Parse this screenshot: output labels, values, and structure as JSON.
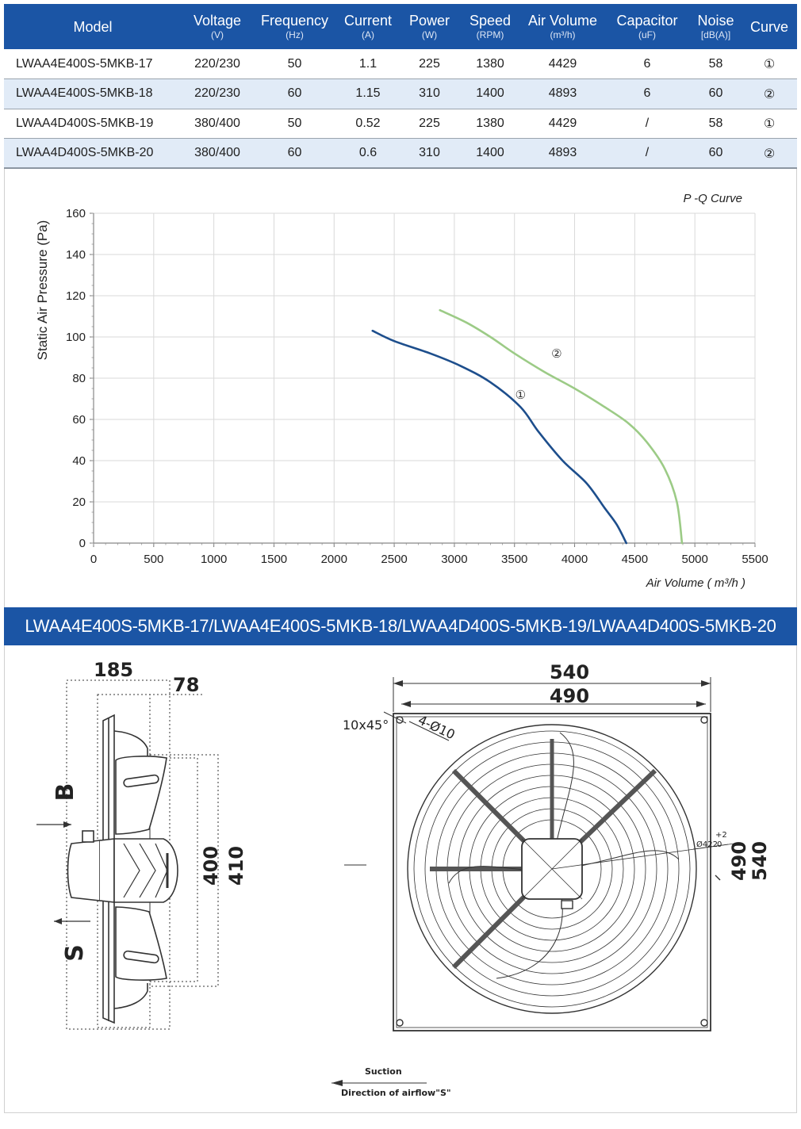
{
  "table": {
    "headers": [
      {
        "label": "Model",
        "unit": ""
      },
      {
        "label": "Voltage",
        "unit": "(V)"
      },
      {
        "label": "Frequency",
        "unit": "(Hz)"
      },
      {
        "label": "Current",
        "unit": "(A)"
      },
      {
        "label": "Power",
        "unit": "(W)"
      },
      {
        "label": "Speed",
        "unit": "(RPM)"
      },
      {
        "label": "Air Volume",
        "unit": "(m³/h)"
      },
      {
        "label": "Capacitor",
        "unit": "(uF)"
      },
      {
        "label": "Noise",
        "unit": "[dB(A)]"
      },
      {
        "label": "Curve",
        "unit": ""
      }
    ],
    "rows": [
      [
        "LWAA4E400S-5MKB-17",
        "220/230",
        "50",
        "1.1",
        "225",
        "1380",
        "4429",
        "6",
        "58",
        "①"
      ],
      [
        "LWAA4E400S-5MKB-18",
        "220/230",
        "60",
        "1.15",
        "310",
        "1400",
        "4893",
        "6",
        "60",
        "②"
      ],
      [
        "LWAA4D400S-5MKB-19",
        "380/400",
        "50",
        "0.52",
        "225",
        "1380",
        "4429",
        "/",
        "58",
        "①"
      ],
      [
        "LWAA4D400S-5MKB-20",
        "380/400",
        "60",
        "0.6",
        "310",
        "1400",
        "4893",
        "/",
        "60",
        "②"
      ]
    ]
  },
  "chart_data": {
    "type": "line",
    "title": "P -Q Curve",
    "xlabel": "Air Volume ( m³/h )",
    "ylabel": "Static Air Pressure  (Pa)",
    "xlim": [
      0,
      5500
    ],
    "ylim": [
      0,
      160
    ],
    "x_ticks": [
      "0",
      "500",
      "1000",
      "1500",
      "2000",
      "2500",
      "3000",
      "3500",
      "4000",
      "4500",
      "5000",
      "5500"
    ],
    "y_ticks": [
      "0",
      "20",
      "40",
      "60",
      "80",
      "100",
      "120",
      "140",
      "160"
    ],
    "grid": true,
    "series": [
      {
        "name": "①",
        "color": "#1d4e8c",
        "points": [
          [
            2320,
            103
          ],
          [
            2500,
            98
          ],
          [
            2800,
            92
          ],
          [
            3050,
            86
          ],
          [
            3300,
            78
          ],
          [
            3550,
            66
          ],
          [
            3700,
            54
          ],
          [
            3900,
            40
          ],
          [
            4100,
            29
          ],
          [
            4250,
            17
          ],
          [
            4350,
            9
          ],
          [
            4430,
            0
          ]
        ]
      },
      {
        "name": "②",
        "color": "#9ccb86",
        "points": [
          [
            2880,
            113
          ],
          [
            3100,
            107
          ],
          [
            3300,
            100
          ],
          [
            3500,
            92
          ],
          [
            3750,
            83
          ],
          [
            4000,
            75
          ],
          [
            4250,
            66
          ],
          [
            4450,
            58
          ],
          [
            4600,
            49
          ],
          [
            4750,
            36
          ],
          [
            4850,
            20
          ],
          [
            4893,
            0
          ]
        ]
      }
    ]
  },
  "banner": {
    "title": "LWAA4E400S-5MKB-17/LWAA4E400S-5MKB-18/LWAA4D400S-5MKB-19/LWAA4D400S-5MKB-20"
  },
  "drawing": {
    "side_depth": "185",
    "side_offset": "78",
    "side_inner_dia": "400",
    "side_outer_dia": "410",
    "letter_b": "B",
    "letter_s": "S",
    "front_outer_width": "540",
    "front_hole_width": "490",
    "front_outer_height": "540",
    "front_hole_height": "490",
    "chamfer": "10x45°",
    "holes": "4-Ø10",
    "ring_dia": "Ø422",
    "ring_tol": "+2",
    "ring_tol2": "0",
    "suction_label": "Suction",
    "airflow_label": "Direction of airflow\"S\""
  }
}
